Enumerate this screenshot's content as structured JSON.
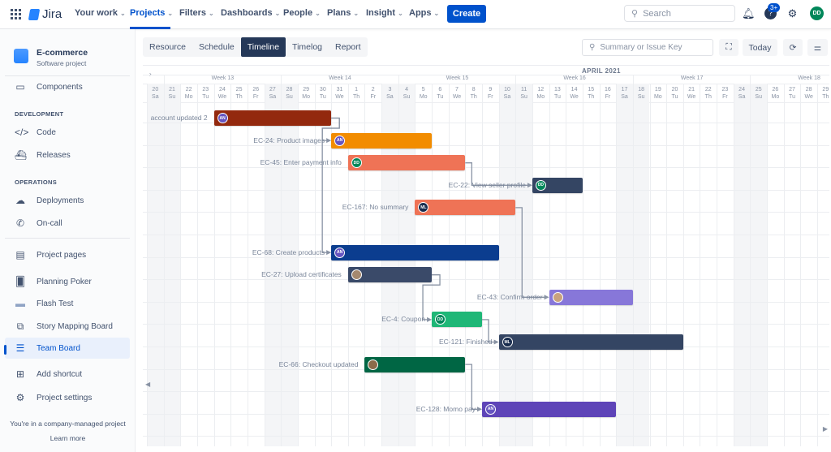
{
  "topnav": {
    "app_name": "Jira",
    "items": [
      {
        "label": "Your work",
        "active": false
      },
      {
        "label": "Projects",
        "active": true
      },
      {
        "label": "Filters",
        "active": false
      },
      {
        "label": "Dashboards",
        "active": false
      },
      {
        "label": "People",
        "active": false
      },
      {
        "label": "Plans",
        "active": false
      },
      {
        "label": "Insight",
        "active": false
      },
      {
        "label": "Apps",
        "active": false
      }
    ],
    "create_label": "Create",
    "search_placeholder": "Search",
    "help_badge": "3+",
    "user_initials": "DD"
  },
  "sidebar": {
    "project_name": "E-commerce",
    "project_type": "Software project",
    "components": "Components",
    "dev_heading": "DEVELOPMENT",
    "code": "Code",
    "releases": "Releases",
    "ops_heading": "OPERATIONS",
    "deployments": "Deployments",
    "oncall": "On-call",
    "project_pages": "Project pages",
    "planning_poker": "Planning Poker",
    "flash_test": "Flash Test",
    "story_mapping": "Story Mapping Board",
    "team_board": "Team Board",
    "add_shortcut": "Add shortcut",
    "project_settings": "Project settings",
    "footer_text": "You're in a company-managed project",
    "learn_more": "Learn more"
  },
  "toolbar": {
    "tabs": [
      "Resource",
      "Schedule",
      "Timeline",
      "Timelog",
      "Report"
    ],
    "active_tab": "Timeline",
    "search_placeholder": "Summary or Issue Key",
    "today_label": "Today"
  },
  "timeline": {
    "month_label": "APRIL 2021",
    "weeks": [
      {
        "label": "Week 13",
        "start_index": 1
      },
      {
        "label": "Week 14",
        "start_index": 8
      },
      {
        "label": "Week 15",
        "start_index": 15
      },
      {
        "label": "Week 16",
        "start_index": 22
      },
      {
        "label": "Week 17",
        "start_index": 29
      },
      {
        "label": "Week 18",
        "start_index": 36
      }
    ],
    "days": [
      [
        "20",
        "Sa"
      ],
      [
        "21",
        "Su"
      ],
      [
        "22",
        "Mo"
      ],
      [
        "23",
        "Tu"
      ],
      [
        "24",
        "We"
      ],
      [
        "25",
        "Th"
      ],
      [
        "26",
        "Fr"
      ],
      [
        "27",
        "Sa"
      ],
      [
        "28",
        "Su"
      ],
      [
        "29",
        "Mo"
      ],
      [
        "30",
        "Tu"
      ],
      [
        "31",
        "We"
      ],
      [
        "1",
        "Th"
      ],
      [
        "2",
        "Fr"
      ],
      [
        "3",
        "Sa"
      ],
      [
        "4",
        "Su"
      ],
      [
        "5",
        "Mo"
      ],
      [
        "6",
        "Tu"
      ],
      [
        "7",
        "We"
      ],
      [
        "8",
        "Th"
      ],
      [
        "9",
        "Fr"
      ],
      [
        "10",
        "Sa"
      ],
      [
        "11",
        "Su"
      ],
      [
        "12",
        "Mo"
      ],
      [
        "13",
        "Tu"
      ],
      [
        "14",
        "We"
      ],
      [
        "15",
        "Th"
      ],
      [
        "16",
        "Fr"
      ],
      [
        "17",
        "Sa"
      ],
      [
        "18",
        "Su"
      ],
      [
        "19",
        "Mo"
      ],
      [
        "20",
        "Tu"
      ],
      [
        "21",
        "We"
      ],
      [
        "22",
        "Th"
      ],
      [
        "23",
        "Fr"
      ],
      [
        "24",
        "Sa"
      ],
      [
        "25",
        "Su"
      ],
      [
        "26",
        "Mo"
      ],
      [
        "27",
        "Tu"
      ],
      [
        "28",
        "We"
      ],
      [
        "29",
        "Th"
      ]
    ],
    "tasks": [
      {
        "label": "account updated 2",
        "row": 0,
        "start": 4,
        "end": 11,
        "color": "#93290E",
        "assignee": "AN",
        "avatar_color": "#6554C0"
      },
      {
        "label": "EC-24: Product images",
        "row": 1,
        "start": 11,
        "end": 17,
        "color": "#F28C00",
        "assignee": "AN",
        "avatar_color": "#6554C0"
      },
      {
        "label": "EC-45: Enter payment info",
        "row": 2,
        "start": 12,
        "end": 19,
        "color": "#EF7356",
        "assignee": "DD",
        "avatar_color": "#00875A"
      },
      {
        "label": "EC-22: View seller profile",
        "row": 3,
        "start": 23,
        "end": 26,
        "color": "#344563",
        "assignee": "DD",
        "avatar_color": "#00875A"
      },
      {
        "label": "EC-167: No summary",
        "row": 4,
        "start": 16,
        "end": 22,
        "color": "#EF7356",
        "assignee": "ML",
        "avatar_color": "#172B4D"
      },
      {
        "label": "EC-68: Create products",
        "row": 6,
        "start": 11,
        "end": 21,
        "color": "#0B3D8F",
        "assignee": "AN",
        "avatar_color": "#6554C0"
      },
      {
        "label": "EC-27: Upload certificates",
        "row": 7,
        "start": 12,
        "end": 17,
        "color": "#3A4A69",
        "assignee": "",
        "avatar_color": "#A5896F"
      },
      {
        "label": "EC-43: Confirm order",
        "row": 8,
        "start": 24,
        "end": 29,
        "color": "#8777D9",
        "assignee": "",
        "avatar_color": "#C9A27E"
      },
      {
        "label": "EC-4: Coupon",
        "row": 9,
        "start": 17,
        "end": 20,
        "color": "#1FB777",
        "assignee": "DD",
        "avatar_color": "#00875A"
      },
      {
        "label": "EC-121: Finished",
        "row": 10,
        "start": 21,
        "end": 32,
        "color": "#344563",
        "assignee": "ML",
        "avatar_color": "#172B4D"
      },
      {
        "label": "EC-66: Checkout updated",
        "row": 11,
        "start": 13,
        "end": 19,
        "color": "#006644",
        "assignee": "",
        "avatar_color": "#8B6B4A"
      },
      {
        "label": "EC-128: Momo pay",
        "row": 13,
        "start": 20,
        "end": 28,
        "color": "#5E44B8",
        "assignee": "AN",
        "avatar_color": "#6554C0"
      }
    ],
    "dependencies": [
      [
        0,
        1
      ],
      [
        0,
        5
      ],
      [
        2,
        3
      ],
      [
        4,
        7
      ],
      [
        6,
        8
      ],
      [
        8,
        9
      ],
      [
        10,
        11
      ]
    ]
  }
}
